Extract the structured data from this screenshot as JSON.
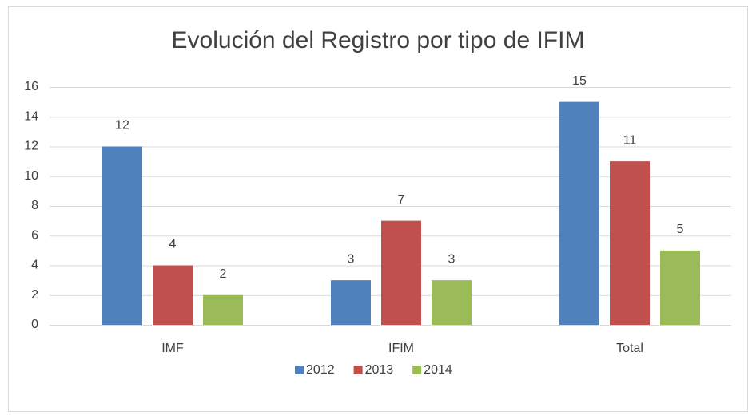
{
  "chart_data": {
    "type": "bar",
    "title": "Evolución del Registro por tipo de IFIM",
    "categories": [
      "IMF",
      "IFIM",
      "Total"
    ],
    "series": [
      {
        "name": "2012",
        "color": "#4f81bd",
        "values": [
          12,
          3,
          15
        ]
      },
      {
        "name": "2013",
        "color": "#c0504d",
        "values": [
          4,
          7,
          11
        ]
      },
      {
        "name": "2014",
        "color": "#9bbb59",
        "values": [
          2,
          3,
          5
        ]
      }
    ],
    "ylim": [
      0,
      16
    ],
    "yticks": [
      0,
      2,
      4,
      6,
      8,
      10,
      12,
      14,
      16
    ],
    "grid": true,
    "legend": "bottom"
  }
}
